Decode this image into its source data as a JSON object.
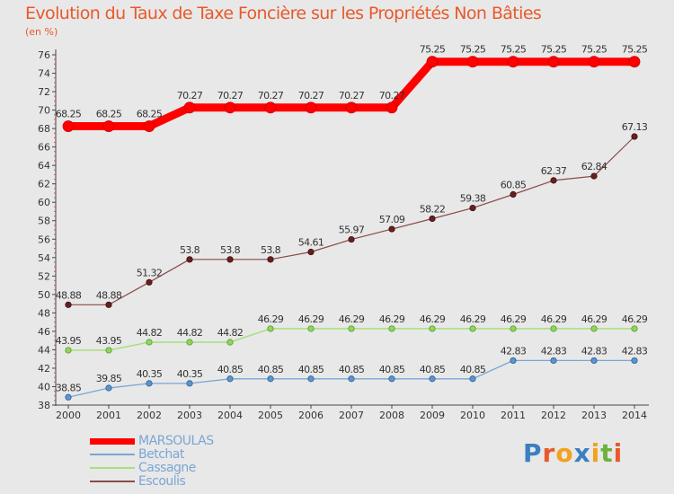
{
  "title": "Evolution du Taux de Taxe Foncière sur les Propriétés Non Bâties",
  "unit_label": "(en %)",
  "logo": {
    "text": "Proxiti",
    "colors": [
      "#3a7fc1",
      "#e8592a",
      "#f3a21c",
      "#3a7fc1",
      "#f3a21c",
      "#6cb23c",
      "#e8592a"
    ]
  },
  "chart_data": {
    "type": "line",
    "title": "Evolution du Taux de Taxe Foncière sur les Propriétés Non Bâties",
    "ylabel": "(en %)",
    "xlabel": "",
    "ylim": [
      38,
      76
    ],
    "yticks": [
      38,
      40,
      42,
      44,
      46,
      48,
      50,
      52,
      54,
      56,
      58,
      60,
      62,
      64,
      66,
      68,
      70,
      72,
      74,
      76
    ],
    "categories": [
      "2000",
      "2001",
      "2002",
      "2003",
      "2004",
      "2005",
      "2006",
      "2007",
      "2008",
      "2009",
      "2010",
      "2011",
      "2012",
      "2013",
      "2014"
    ],
    "grid": false,
    "legend_position": "bottom-left",
    "series": [
      {
        "name": "MARSOULAS",
        "color": "#ff0000",
        "values": [
          68.25,
          68.25,
          68.25,
          70.27,
          70.27,
          70.27,
          70.27,
          70.27,
          70.27,
          75.25,
          75.25,
          75.25,
          75.25,
          75.25,
          75.25
        ]
      },
      {
        "name": "Betchat",
        "color": "#7aa6d4",
        "values": [
          38.85,
          39.85,
          40.35,
          40.35,
          40.85,
          40.85,
          40.85,
          40.85,
          40.85,
          40.85,
          40.85,
          42.83,
          42.83,
          42.83,
          42.83
        ]
      },
      {
        "name": "Cassagne",
        "color": "#a6e07a",
        "values": [
          43.95,
          43.95,
          44.82,
          44.82,
          44.82,
          46.29,
          46.29,
          46.29,
          46.29,
          46.29,
          46.29,
          46.29,
          46.29,
          46.29,
          46.29
        ]
      },
      {
        "name": "Escoulis",
        "color": "#8a4a4a",
        "values": [
          48.88,
          48.88,
          51.32,
          53.8,
          53.8,
          53.8,
          54.61,
          55.97,
          57.09,
          58.22,
          59.38,
          60.85,
          62.37,
          62.84,
          67.13
        ]
      }
    ]
  }
}
